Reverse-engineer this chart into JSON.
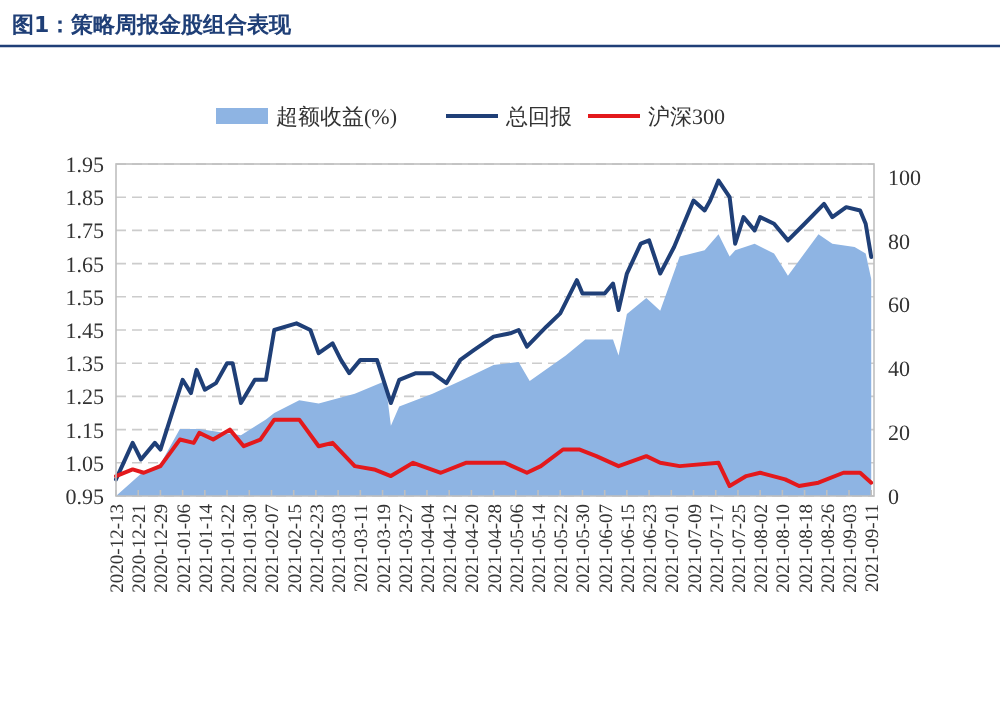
{
  "chart_data": {
    "type": "line",
    "title": "图1：策略周报金股组合表现",
    "xlim": [
      "2020-12-13",
      "2021-09-12"
    ],
    "xticks": [
      "2020-12-13",
      "2020-12-21",
      "2020-12-29",
      "2021-01-06",
      "2021-01-14",
      "2021-01-22",
      "2021-01-30",
      "2021-02-07",
      "2021-02-15",
      "2021-02-23",
      "2021-03-03",
      "2021-03-11",
      "2021-03-19",
      "2021-03-27",
      "2021-04-04",
      "2021-04-12",
      "2021-04-20",
      "2021-04-28",
      "2021-05-06",
      "2021-05-14",
      "2021-05-22",
      "2021-05-30",
      "2021-06-07",
      "2021-06-15",
      "2021-06-23",
      "2021-07-01",
      "2021-07-09",
      "2021-07-17",
      "2021-07-25",
      "2021-08-02",
      "2021-08-10",
      "2021-08-18",
      "2021-08-26",
      "2021-09-03",
      "2021-09-11"
    ],
    "ylim": [
      0.95,
      1.95
    ],
    "yticks": [
      0.95,
      1.05,
      1.15,
      1.25,
      1.35,
      1.45,
      1.55,
      1.65,
      1.75,
      1.85,
      1.95
    ],
    "y2lim": [
      0,
      104
    ],
    "y2ticks": [
      0,
      20,
      40,
      60,
      80,
      100
    ],
    "grid": "y",
    "legend": "top",
    "series": [
      {
        "name": "超额收益(%)",
        "type": "area",
        "axis": "y2",
        "color": "#8eb4e3",
        "x": [
          "2020-12-13",
          "2020-12-22",
          "2020-12-29",
          "2021-01-05",
          "2021-01-12",
          "2021-01-27",
          "2021-02-05",
          "2021-02-08",
          "2021-02-17",
          "2021-02-24",
          "2021-03-09",
          "2021-03-20",
          "2021-03-22",
          "2021-03-25",
          "2021-04-06",
          "2021-04-16",
          "2021-04-28",
          "2021-05-07",
          "2021-05-11",
          "2021-05-24",
          "2021-05-31",
          "2021-06-10",
          "2021-06-12",
          "2021-06-15",
          "2021-06-22",
          "2021-06-27",
          "2021-07-04",
          "2021-07-13",
          "2021-07-18",
          "2021-07-22",
          "2021-07-24",
          "2021-07-31",
          "2021-08-07",
          "2021-08-12",
          "2021-08-23",
          "2021-08-28",
          "2021-09-05",
          "2021-09-09",
          "2021-09-11"
        ],
        "values": [
          0,
          7,
          10,
          21,
          21,
          19,
          24,
          26,
          30,
          29,
          32,
          36,
          22,
          28,
          32,
          36,
          41,
          42,
          36,
          44,
          49,
          49,
          44,
          57,
          62,
          58,
          75,
          77,
          82,
          75,
          77,
          79,
          76,
          69,
          82,
          79,
          78,
          76,
          68
        ]
      },
      {
        "name": "总回报",
        "type": "line",
        "color": "#1f3f77",
        "x": [
          "2020-12-13",
          "2020-12-19",
          "2020-12-22",
          "2020-12-27",
          "2020-12-29",
          "2021-01-06",
          "2021-01-09",
          "2021-01-11",
          "2021-01-14",
          "2021-01-18",
          "2021-01-22",
          "2021-01-24",
          "2021-01-27",
          "2021-02-01",
          "2021-02-05",
          "2021-02-08",
          "2021-02-16",
          "2021-02-21",
          "2021-02-24",
          "2021-03-01",
          "2021-03-04",
          "2021-03-07",
          "2021-03-11",
          "2021-03-17",
          "2021-03-22",
          "2021-03-25",
          "2021-03-31",
          "2021-04-06",
          "2021-04-11",
          "2021-04-16",
          "2021-04-21",
          "2021-04-28",
          "2021-05-04",
          "2021-05-07",
          "2021-05-10",
          "2021-05-17",
          "2021-05-22",
          "2021-05-28",
          "2021-05-30",
          "2021-06-07",
          "2021-06-10",
          "2021-06-12",
          "2021-06-15",
          "2021-06-20",
          "2021-06-23",
          "2021-06-27",
          "2021-07-02",
          "2021-07-09",
          "2021-07-13",
          "2021-07-15",
          "2021-07-18",
          "2021-07-22",
          "2021-07-24",
          "2021-07-27",
          "2021-07-31",
          "2021-08-02",
          "2021-08-07",
          "2021-08-12",
          "2021-08-18",
          "2021-08-25",
          "2021-08-28",
          "2021-09-02",
          "2021-09-07",
          "2021-09-09",
          "2021-09-11"
        ],
        "values": [
          1.0,
          1.11,
          1.06,
          1.11,
          1.09,
          1.3,
          1.26,
          1.33,
          1.27,
          1.29,
          1.35,
          1.35,
          1.23,
          1.3,
          1.3,
          1.45,
          1.47,
          1.45,
          1.38,
          1.41,
          1.36,
          1.32,
          1.36,
          1.36,
          1.23,
          1.3,
          1.32,
          1.32,
          1.29,
          1.36,
          1.39,
          1.43,
          1.44,
          1.45,
          1.4,
          1.46,
          1.5,
          1.6,
          1.56,
          1.56,
          1.59,
          1.51,
          1.62,
          1.71,
          1.72,
          1.62,
          1.7,
          1.84,
          1.81,
          1.84,
          1.9,
          1.85,
          1.71,
          1.79,
          1.75,
          1.79,
          1.77,
          1.72,
          1.77,
          1.83,
          1.79,
          1.82,
          1.81,
          1.77,
          1.67
        ]
      },
      {
        "name": "沪深300",
        "type": "line",
        "color": "#e3191c",
        "x": [
          "2020-12-13",
          "2020-12-19",
          "2020-12-23",
          "2020-12-29",
          "2021-01-05",
          "2021-01-10",
          "2021-01-12",
          "2021-01-17",
          "2021-01-23",
          "2021-01-28",
          "2021-02-03",
          "2021-02-08",
          "2021-02-17",
          "2021-02-24",
          "2021-03-01",
          "2021-03-09",
          "2021-03-16",
          "2021-03-22",
          "2021-03-30",
          "2021-04-09",
          "2021-04-18",
          "2021-04-28",
          "2021-05-02",
          "2021-05-10",
          "2021-05-15",
          "2021-05-23",
          "2021-05-29",
          "2021-06-04",
          "2021-06-12",
          "2021-06-22",
          "2021-06-27",
          "2021-07-04",
          "2021-07-18",
          "2021-07-22",
          "2021-07-28",
          "2021-08-02",
          "2021-08-11",
          "2021-08-16",
          "2021-08-23",
          "2021-09-01",
          "2021-09-07",
          "2021-09-11"
        ],
        "values": [
          1.01,
          1.03,
          1.02,
          1.04,
          1.12,
          1.11,
          1.14,
          1.12,
          1.15,
          1.1,
          1.12,
          1.18,
          1.18,
          1.1,
          1.11,
          1.04,
          1.03,
          1.01,
          1.05,
          1.02,
          1.05,
          1.05,
          1.05,
          1.02,
          1.04,
          1.09,
          1.09,
          1.07,
          1.04,
          1.07,
          1.05,
          1.04,
          1.05,
          0.98,
          1.01,
          1.02,
          1.0,
          0.98,
          0.99,
          1.02,
          1.02,
          0.99
        ]
      }
    ]
  }
}
